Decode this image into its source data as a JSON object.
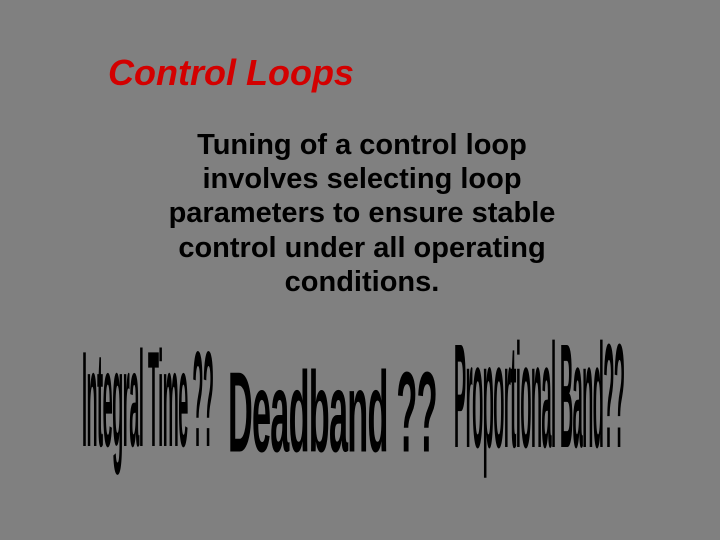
{
  "slide": {
    "background_color": "#808080",
    "title": {
      "text": "Control Loops",
      "color": "#d30000",
      "font_size_pt": 36,
      "font_weight": "bold",
      "font_style": "italic"
    },
    "body": {
      "text": "Tuning of a control loop involves selecting loop parameters to ensure stable control under all operating conditions.",
      "color": "#000000",
      "font_size_pt": 29,
      "font_weight": "bold",
      "align": "center"
    },
    "wordart_terms": [
      {
        "text": "Integral Time ??",
        "color": "#000000",
        "font_size_pt": 40,
        "scale_x": 0.45,
        "scale_y": 3.4
      },
      {
        "text": "Deadband ??",
        "color": "#000000",
        "font_size_pt": 44,
        "scale_x": 0.78,
        "scale_y": 2.6
      },
      {
        "text": "Proportional Band??",
        "color": "#000000",
        "font_size_pt": 38,
        "scale_x": 0.48,
        "scale_y": 3.9
      }
    ]
  }
}
